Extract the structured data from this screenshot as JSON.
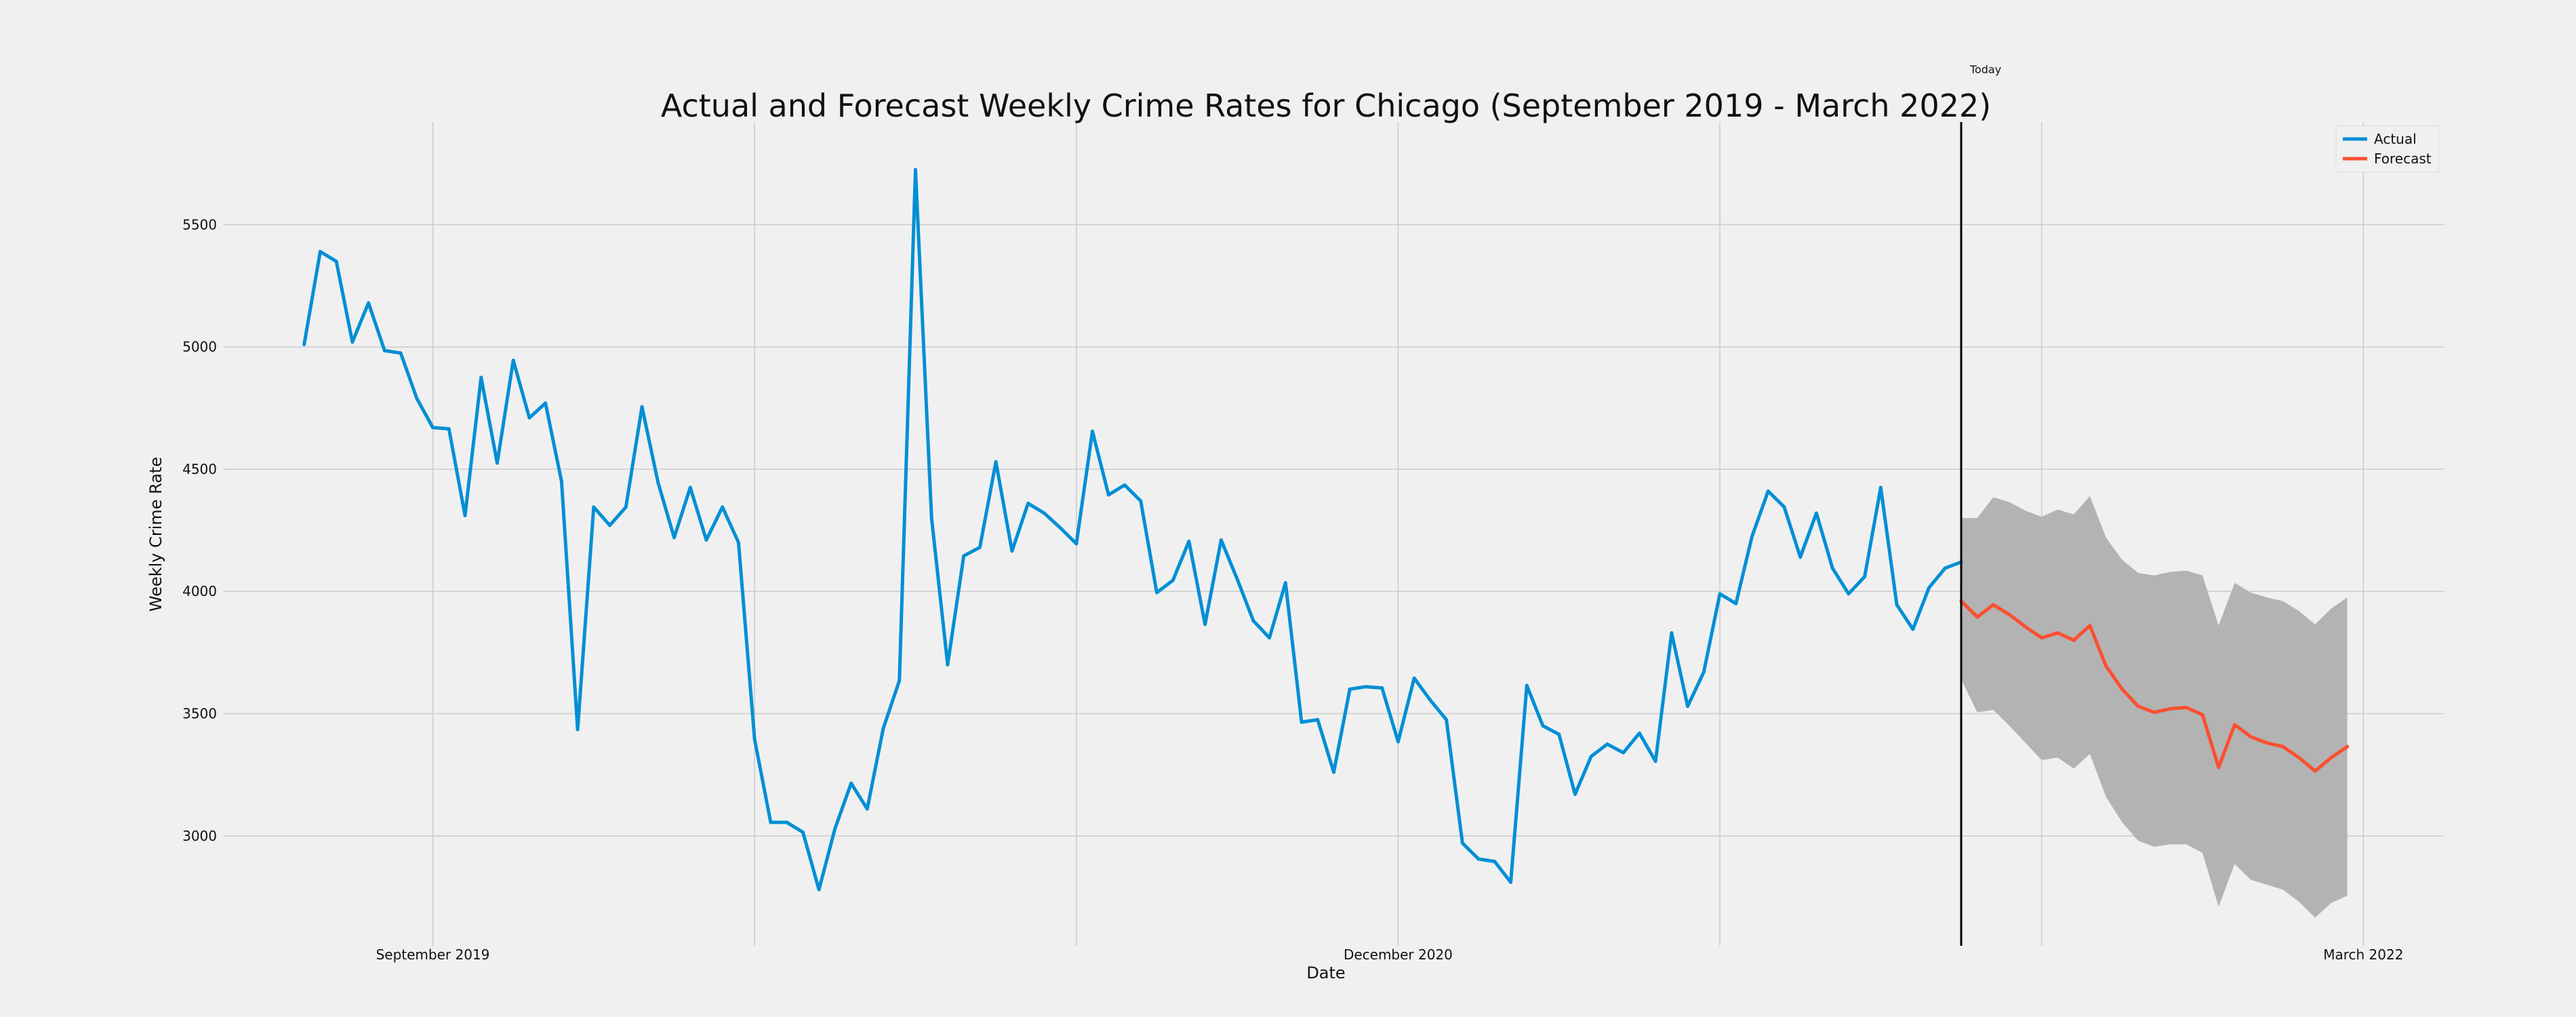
{
  "chart_data": {
    "type": "line",
    "title": "Actual and Forecast Weekly Crime Rates for Chicago (September 2019 - March 2022)",
    "xlabel": "Date",
    "ylabel": "Weekly Crime Rate",
    "x_tick_labels": [
      {
        "label": "September 2019",
        "index": 8
      },
      {
        "label": "December 2020",
        "index": 68
      },
      {
        "label": "March 2022",
        "index": 128
      }
    ],
    "x_gridline_indices": [
      8,
      28,
      48,
      68,
      88,
      108,
      128
    ],
    "y_ticks": [
      3000,
      3500,
      4000,
      4500,
      5000,
      5500
    ],
    "ylim": [
      2550,
      5920
    ],
    "xlim": [
      -5,
      133
    ],
    "today_index": 103,
    "today_label": "Today",
    "grid": true,
    "legend": {
      "placement": "top-right",
      "entries": [
        {
          "name": "Actual",
          "color": "#008fd5"
        },
        {
          "name": "Forecast",
          "color": "#fc4f30"
        }
      ]
    },
    "series": [
      {
        "name": "Actual",
        "color": "#008fd5",
        "start_index": 0,
        "values": [
          5010,
          5390,
          5350,
          5020,
          5180,
          4985,
          4975,
          4790,
          4670,
          4665,
          4310,
          4875,
          4525,
          4945,
          4710,
          4770,
          4450,
          3435,
          4345,
          4270,
          4345,
          4755,
          4445,
          4220,
          4425,
          4210,
          4345,
          4200,
          3395,
          3055,
          3055,
          3015,
          2780,
          3030,
          3215,
          3110,
          3440,
          3635,
          5725,
          4300,
          3700,
          4145,
          4180,
          4530,
          4165,
          4360,
          4320,
          4260,
          4195,
          4655,
          4395,
          4435,
          4370,
          3995,
          4045,
          4205,
          3865,
          4210,
          4050,
          3880,
          3810,
          4035,
          3465,
          3475,
          3260,
          3600,
          3610,
          3605,
          3385,
          3645,
          3555,
          3475,
          2970,
          2905,
          2895,
          2810,
          3615,
          3450,
          3415,
          3170,
          3325,
          3375,
          3340,
          3420,
          3305,
          3830,
          3530,
          3670,
          3990,
          3950,
          4225,
          4410,
          4345,
          4140,
          4320,
          4095,
          3990,
          4060,
          4425,
          3945,
          3845,
          4015,
          4095,
          4120
        ]
      },
      {
        "name": "Forecast",
        "color": "#fc4f30",
        "start_index": 103,
        "values": [
          3960,
          3895,
          3945,
          3905,
          3855,
          3810,
          3830,
          3800,
          3860,
          3695,
          3600,
          3530,
          3505,
          3520,
          3525,
          3495,
          3280,
          3455,
          3405,
          3380,
          3365,
          3320,
          3265,
          3320,
          3365
        ],
        "lower": [
          3640,
          3505,
          3515,
          3450,
          3380,
          3310,
          3320,
          3275,
          3335,
          3160,
          3055,
          2980,
          2955,
          2965,
          2965,
          2930,
          2710,
          2885,
          2820,
          2800,
          2780,
          2730,
          2665,
          2725,
          2755
        ],
        "upper": [
          4300,
          4300,
          4385,
          4365,
          4330,
          4305,
          4335,
          4315,
          4390,
          4220,
          4130,
          4075,
          4065,
          4080,
          4085,
          4065,
          3860,
          4035,
          3995,
          3975,
          3960,
          3920,
          3865,
          3930,
          3975
        ]
      }
    ]
  }
}
